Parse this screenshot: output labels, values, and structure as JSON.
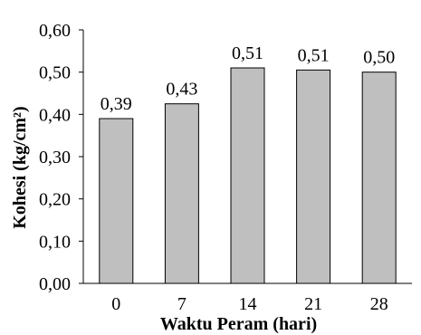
{
  "chart_data": {
    "type": "bar",
    "categories": [
      "0",
      "7",
      "14",
      "21",
      "28"
    ],
    "values": [
      0.39,
      0.425,
      0.51,
      0.505,
      0.5
    ],
    "data_labels": [
      "0,39",
      "0,43",
      "0,51",
      "0,51",
      "0,50"
    ],
    "xlabel": "Waktu Peram (hari)",
    "ylabel": "Kohesi (kg/cm²)",
    "ylim": [
      0,
      0.6
    ],
    "yticks": [
      0,
      0.1,
      0.2,
      0.3,
      0.4,
      0.5,
      0.6
    ],
    "ytick_labels": [
      "0,00",
      "0,10",
      "0,20",
      "0,30",
      "0,40",
      "0,50",
      "0,60"
    ],
    "grid": false,
    "bar_color": "#bfbfbf",
    "bar_edge_color": "#000000"
  }
}
